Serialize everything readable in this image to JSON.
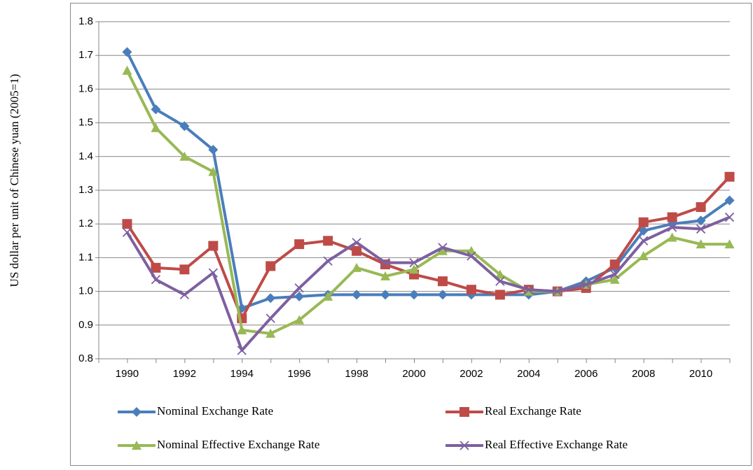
{
  "chart_data": {
    "type": "line",
    "y_label": "US dollar per unit of Chinese yuan (2005=1)",
    "categories": [
      "1990",
      null,
      "1992",
      null,
      "1994",
      null,
      "1996",
      null,
      "1998",
      null,
      "2000",
      null,
      "2002",
      null,
      "2004",
      null,
      "2006",
      null,
      "2008",
      null,
      "2010",
      null
    ],
    "series": [
      {
        "name": "Nominal Exchange Rate",
        "color": "#4a7ebb",
        "marker": "diamond",
        "values": [
          1.71,
          1.54,
          1.49,
          1.42,
          0.95,
          0.98,
          0.985,
          0.99,
          0.99,
          0.99,
          0.99,
          0.99,
          0.99,
          0.99,
          0.99,
          1.0,
          1.03,
          1.07,
          1.18,
          1.2,
          1.21,
          1.27
        ]
      },
      {
        "name": "Real Exchange Rate",
        "color": "#be4b48",
        "marker": "square",
        "values": [
          1.2,
          1.07,
          1.065,
          1.135,
          0.92,
          1.075,
          1.14,
          1.15,
          1.12,
          1.08,
          1.05,
          1.03,
          1.005,
          0.99,
          1.005,
          1.0,
          1.01,
          1.08,
          1.205,
          1.22,
          1.25,
          1.34
        ]
      },
      {
        "name": "Nominal Effective Exchange Rate",
        "color": "#98b954",
        "marker": "triangle",
        "values": [
          1.655,
          1.485,
          1.4,
          1.355,
          0.885,
          0.875,
          0.915,
          0.985,
          1.07,
          1.045,
          1.065,
          1.12,
          1.12,
          1.05,
          1.0,
          1.0,
          1.02,
          1.035,
          1.105,
          1.16,
          1.14,
          1.14
        ]
      },
      {
        "name": "Real Effective Exchange Rate",
        "color": "#7d60a0",
        "marker": "x",
        "values": [
          1.175,
          1.035,
          0.99,
          1.055,
          0.825,
          0.92,
          1.01,
          1.09,
          1.145,
          1.085,
          1.085,
          1.13,
          1.105,
          1.03,
          1.005,
          1.0,
          1.02,
          1.05,
          1.15,
          1.19,
          1.185,
          1.22
        ]
      }
    ],
    "ylim": [
      0.8,
      1.8
    ],
    "yticks": [
      0.8,
      0.9,
      {
        "value": 1,
        "label": "1.0"
      },
      1.1,
      1.2,
      1.3,
      1.4,
      1.5,
      1.6,
      1.7,
      1.8
    ],
    "grid": true
  }
}
